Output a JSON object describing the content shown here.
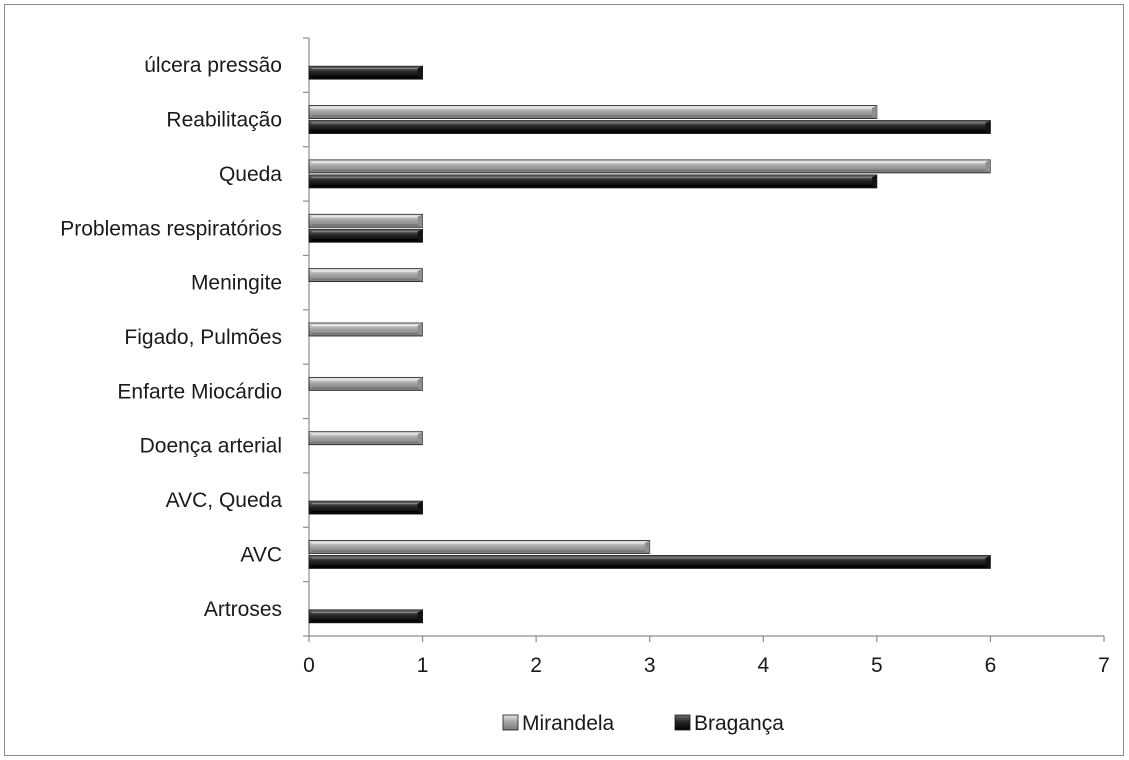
{
  "chart_data": {
    "type": "bar",
    "orientation": "horizontal",
    "categories": [
      "Artroses",
      "AVC",
      "AVC, Queda",
      "Doença arterial",
      "Enfarte Miocárdio",
      "Figado, Pulmões",
      "Meningite",
      "Problemas respiratórios",
      "Queda",
      "Reabilitação",
      "úlcera pressão"
    ],
    "series": [
      {
        "name": "Mirandela",
        "color": "#a6a6a6",
        "values": [
          0,
          3,
          0,
          1,
          1,
          1,
          1,
          1,
          6,
          5,
          0
        ]
      },
      {
        "name": "Bragança",
        "color": "#262626",
        "values": [
          1,
          6,
          1,
          0,
          0,
          0,
          0,
          1,
          5,
          6,
          1
        ]
      }
    ],
    "xlim": [
      0,
      7
    ],
    "xticks": [
      "0",
      "1",
      "2",
      "3",
      "4",
      "5",
      "6",
      "7"
    ],
    "grid": false,
    "legend_position": "bottom"
  }
}
